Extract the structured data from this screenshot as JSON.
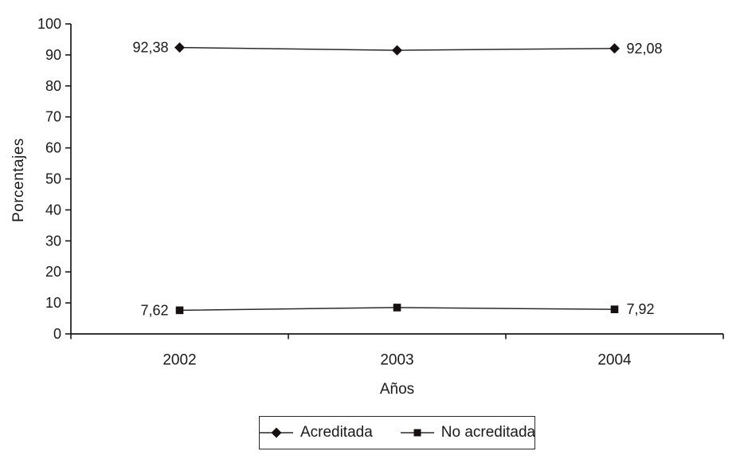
{
  "figure": {
    "background": "#ffffff",
    "text_color": "#1a1a1a",
    "axis_color": "#1a1a1a",
    "line_color": "#2b2b2b",
    "marker_color": "#161010"
  },
  "chart_data": {
    "type": "line",
    "title": "",
    "categories": [
      "2002",
      "2003",
      "2004"
    ],
    "series": [
      {
        "name": "Acreditada",
        "marker": "diamond",
        "values": [
          92.38,
          91.5,
          92.08
        ],
        "point_labels": [
          "92,38",
          "",
          "92,08"
        ]
      },
      {
        "name": "No acreditada",
        "marker": "square",
        "values": [
          7.62,
          8.5,
          7.92
        ],
        "point_labels": [
          "7,62",
          "",
          "7,92"
        ]
      }
    ],
    "xlabel": "Años",
    "ylabel": "Porcentajes",
    "ylim": [
      0,
      100
    ],
    "yticks": [
      0,
      10,
      20,
      30,
      40,
      50,
      60,
      70,
      80,
      90,
      100
    ],
    "grid": false,
    "legend_position": "bottom"
  }
}
